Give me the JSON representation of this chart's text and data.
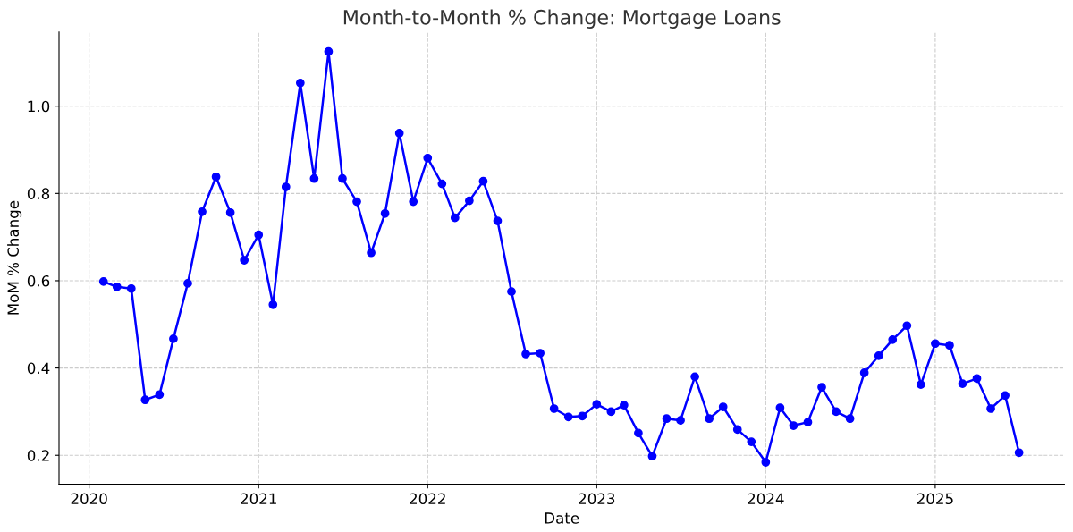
{
  "chart_data": {
    "type": "line",
    "title": "Month-to-Month % Change: Mortgage Loans",
    "xlabel": "Date",
    "ylabel": "MoM % Change",
    "x": [
      "2020-02",
      "2020-03",
      "2020-04",
      "2020-05",
      "2020-06",
      "2020-07",
      "2020-08",
      "2020-09",
      "2020-10",
      "2020-11",
      "2020-12",
      "2021-01",
      "2021-02",
      "2021-03",
      "2021-04",
      "2021-05",
      "2021-06",
      "2021-07",
      "2021-08",
      "2021-09",
      "2021-10",
      "2021-11",
      "2021-12",
      "2022-01",
      "2022-02",
      "2022-03",
      "2022-04",
      "2022-05",
      "2022-06",
      "2022-07",
      "2022-08",
      "2022-09",
      "2022-10",
      "2022-11",
      "2022-12",
      "2023-01",
      "2023-02",
      "2023-03",
      "2023-04",
      "2023-05",
      "2023-06",
      "2023-07",
      "2023-08",
      "2023-09",
      "2023-10",
      "2023-11",
      "2023-12",
      "2024-01",
      "2024-02",
      "2024-03",
      "2024-04",
      "2024-05",
      "2024-06",
      "2024-07",
      "2024-08",
      "2024-09",
      "2024-10",
      "2024-11",
      "2024-12",
      "2025-01",
      "2025-02",
      "2025-03",
      "2025-04",
      "2025-05",
      "2025-06",
      "2025-07"
    ],
    "series": [
      {
        "color": "#0000ff",
        "values": [
          0.598,
          0.586,
          0.582,
          0.327,
          0.339,
          0.467,
          0.594,
          0.758,
          0.838,
          0.756,
          0.647,
          0.705,
          0.545,
          0.815,
          1.053,
          0.834,
          1.125,
          0.834,
          0.781,
          0.664,
          0.754,
          0.938,
          0.781,
          0.881,
          0.822,
          0.744,
          0.783,
          0.828,
          0.737,
          0.575,
          0.432,
          0.434,
          0.307,
          0.288,
          0.29,
          0.317,
          0.3,
          0.315,
          0.251,
          0.198,
          0.284,
          0.28,
          0.38,
          0.284,
          0.311,
          0.259,
          0.231,
          0.184,
          0.309,
          0.268,
          0.276,
          0.356,
          0.3,
          0.284,
          0.389,
          0.428,
          0.465,
          0.497,
          0.362,
          0.456,
          0.452,
          0.364,
          0.376,
          0.307,
          0.337,
          0.206
        ]
      }
    ],
    "xlim": [
      "2019-10-28",
      "2025-10-07"
    ],
    "xticks": [
      {
        "value": "2020-01-01",
        "label": "2020"
      },
      {
        "value": "2021-01-01",
        "label": "2021"
      },
      {
        "value": "2022-01-01",
        "label": "2022"
      },
      {
        "value": "2023-01-01",
        "label": "2023"
      },
      {
        "value": "2024-01-01",
        "label": "2024"
      },
      {
        "value": "2025-01-01",
        "label": "2025"
      }
    ],
    "ylim": [
      0.134,
      1.17
    ],
    "yticks": [
      {
        "value": 0.2,
        "label": "0.2"
      },
      {
        "value": 0.4,
        "label": "0.4"
      },
      {
        "value": 0.6,
        "label": "0.6"
      },
      {
        "value": 0.8,
        "label": "0.8"
      },
      {
        "value": 1.0,
        "label": "1.0"
      }
    ],
    "grid": true,
    "marker": "circle",
    "line_style": "solid",
    "legend": false
  }
}
